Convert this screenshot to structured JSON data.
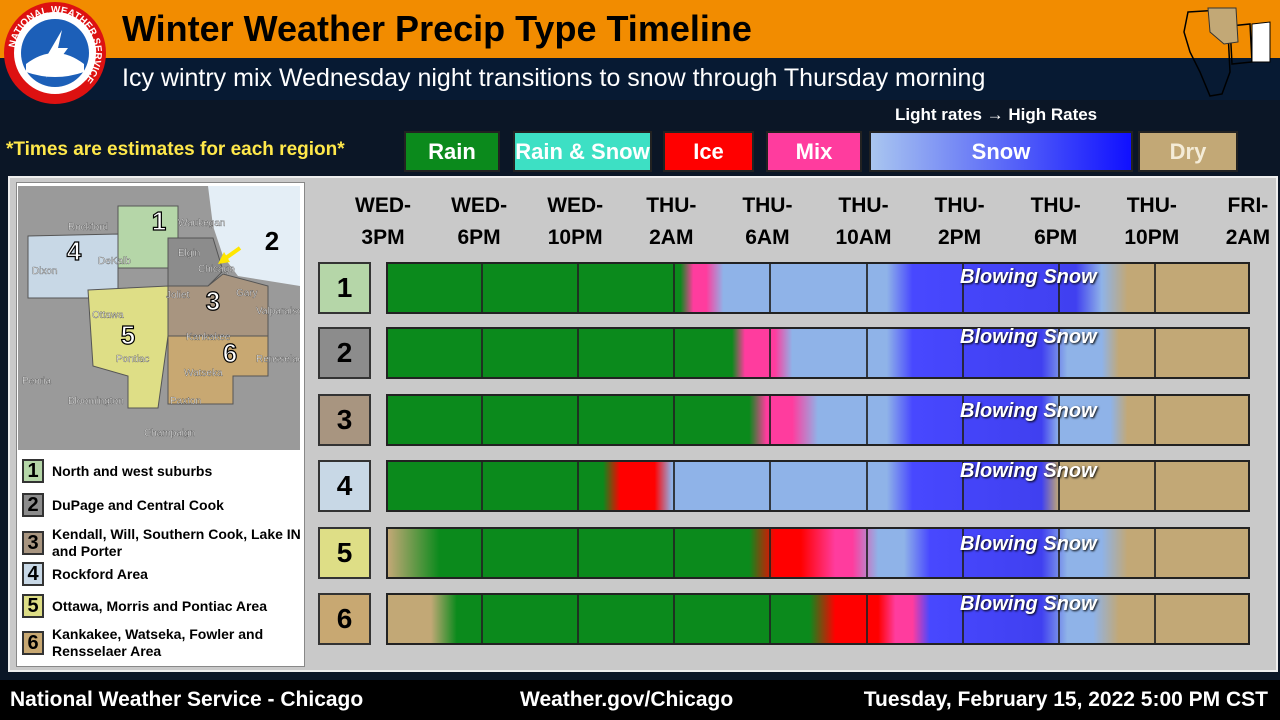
{
  "header": {
    "title": "Winter Weather Precip Type Timeline",
    "subtitle": "Icy wintry mix Wednesday night transitions to snow through Thursday morning",
    "logo_text": "NATIONAL WEATHER SERVICE"
  },
  "rates_note": "Light rates → High Rates",
  "estimates_note": "*Times are estimates for each region*",
  "legend": [
    {
      "label": "Rain",
      "color": "#0b8a1c"
    },
    {
      "label": "Rain & Snow",
      "color": "#3de0c4"
    },
    {
      "label": "Ice",
      "color": "#ff0000"
    },
    {
      "label": "Mix",
      "color": "#ff3c9e"
    },
    {
      "label": "Snow",
      "color": "linear-gradient(90deg,#a9c6f0,#1010ff)"
    },
    {
      "label": "Dry",
      "color": "#c2a876"
    }
  ],
  "time_labels": [
    [
      "WED-",
      "3PM"
    ],
    [
      "WED-",
      "6PM"
    ],
    [
      "WED-",
      "10PM"
    ],
    [
      "THU-",
      "2AM"
    ],
    [
      "THU-",
      "6AM"
    ],
    [
      "THU-",
      "10AM"
    ],
    [
      "THU-",
      "2PM"
    ],
    [
      "THU-",
      "6PM"
    ],
    [
      "THU-",
      "10PM"
    ],
    [
      "FRI-",
      "2AM"
    ]
  ],
  "regions": [
    {
      "number": "1",
      "label": "North and west suburbs",
      "color": "#b5d6a8",
      "annotation": "Blowing Snow"
    },
    {
      "number": "2",
      "label": "DuPage and Central Cook",
      "color": "#8c8c8c",
      "annotation": "Blowing Snow"
    },
    {
      "number": "3",
      "label": "Kendall, Will, Southern Cook, Lake IN and Porter",
      "color": "#a89580",
      "annotation": "Blowing Snow"
    },
    {
      "number": "4",
      "label": "Rockford Area",
      "color": "#c8d8e6",
      "annotation": "Blowing Snow"
    },
    {
      "number": "5",
      "label": "Ottawa, Morris and Pontiac Area",
      "color": "#dede86",
      "annotation": "Blowing Snow"
    },
    {
      "number": "6",
      "label": "Kankakee, Watseka, Fowler and Rensselaer Area",
      "color": "#c8a872",
      "annotation": "Blowing Snow"
    }
  ],
  "map_labels": [
    "Rockford",
    "Waukegan",
    "Elgin",
    "Dixon",
    "DeKalb",
    "Chicago",
    "Joliet",
    "Gary",
    "Valparaiso",
    "Ottawa",
    "Kankakee",
    "Pontiac",
    "Rensselaer",
    "Watseka",
    "Peoria",
    "Paxton",
    "Bloomington",
    "Champaign"
  ],
  "footer": {
    "left": "National Weather Service - Chicago",
    "center": "Weather.gov/Chicago",
    "right": "Tuesday, February 15, 2022 5:00 PM CST"
  }
}
